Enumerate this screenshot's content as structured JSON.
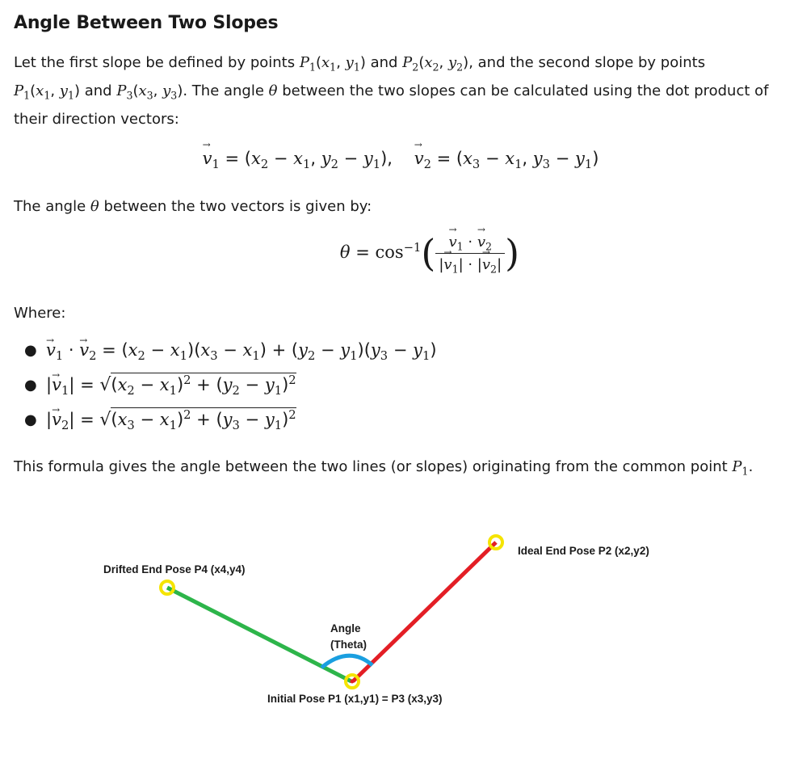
{
  "title": "Angle Between Two Slopes",
  "intro": {
    "t1": "Let the first slope be defined by points ",
    "t2": " and ",
    "t3": ", and the second slope by points",
    "t4": " and ",
    "t5": ". The angle ",
    "t6": " between the two slopes can be calculated using the dot product of",
    "t7": "their direction vectors:"
  },
  "angle_text": "The angle θ between the two vectors is given by:",
  "angle_text_a": "The angle ",
  "angle_text_b": " between the two vectors is given by:",
  "where": "Where:",
  "conclusion": "This formula gives the angle between the two lines (or slopes) originating from the common point ",
  "diagram": {
    "label_p4": "Drifted End Pose P4 (x4,y4)",
    "label_p2": "Ideal End Pose P2  (x2,y2)",
    "label_angle_1": "Angle",
    "label_angle_2": "(Theta)",
    "label_p1": "Initial Pose P1 (x1,y1) = P3 (x3,y3)",
    "colors": {
      "green": "#2db54a",
      "red": "#e31e25",
      "blue": "#1a9fe0",
      "yellow": "#f5e400"
    }
  }
}
